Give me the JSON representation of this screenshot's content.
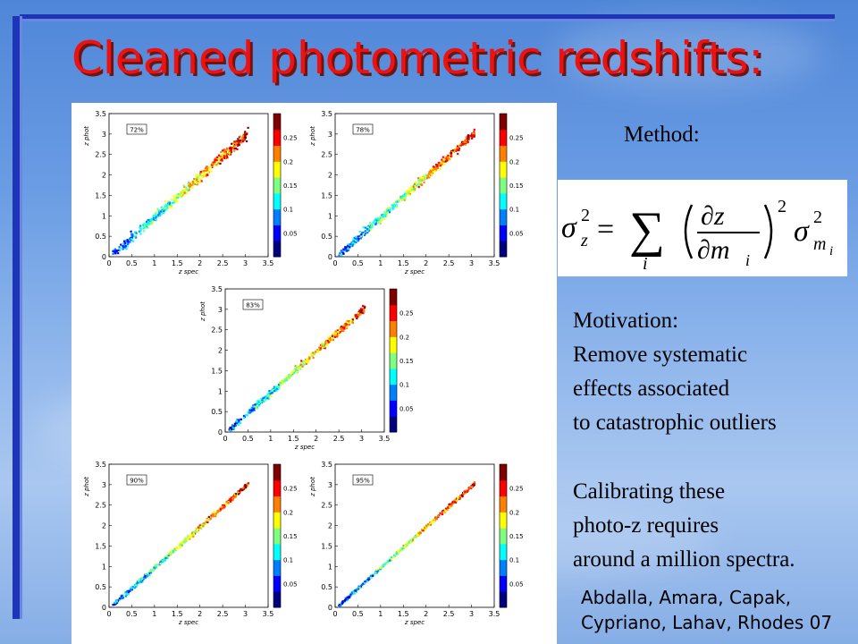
{
  "slide": {
    "title": "Cleaned photometric redshifts:",
    "method_label": "Method:",
    "equation": {
      "lhs": "σ",
      "lhs_sub": "z",
      "sum_sub": "i",
      "numerator": "∂z",
      "denominator": "∂m",
      "den_sub": "i",
      "rhs": "σ",
      "rhs_sub": "m",
      "rhs_subsub": "i",
      "power": "2"
    },
    "motivation": [
      "Motivation:",
      "Remove systematic",
      "effects associated",
      "to catastrophic outliers"
    ],
    "calibrating": [
      "Calibrating these",
      "photo-z requires",
      "around a million spectra."
    ],
    "credit": [
      "Abdalla, Amara, Capak,",
      "Cypriano, Lahav, Rhodes 07"
    ],
    "colors": {
      "title": "#ee1111",
      "accent_bar": "#1f35b8"
    }
  },
  "chart_data": [
    {
      "type": "scatter",
      "label": "72%",
      "xlabel": "z spec",
      "ylabel": "z phot",
      "xlim": [
        0,
        3.5
      ],
      "ylim": [
        0,
        3.5
      ],
      "colorbar_ticks": [
        "0.25",
        "0.2",
        "0.15",
        "0.1",
        "0.05"
      ],
      "x_ticks": [
        "0",
        "0.5",
        "1",
        "1.5",
        "2",
        "2.5",
        "3",
        "3.5"
      ],
      "y_ticks": [
        "0",
        "0.5",
        "1",
        "1.5",
        "2",
        "2.5",
        "3",
        "3.5"
      ],
      "spread": 0.22
    },
    {
      "type": "scatter",
      "label": "78%",
      "xlabel": "z spec",
      "ylabel": "z phot",
      "xlim": [
        0,
        3.5
      ],
      "ylim": [
        0,
        3.5
      ],
      "colorbar_ticks": [
        "0.25",
        "0.2",
        "0.15",
        "0.1",
        "0.05"
      ],
      "x_ticks": [
        "0",
        "0.5",
        "1",
        "1.5",
        "2",
        "2.5",
        "3",
        "3.5"
      ],
      "y_ticks": [
        "0",
        "0.5",
        "1",
        "1.5",
        "2",
        "2.5",
        "3",
        "3.5"
      ],
      "spread": 0.18
    },
    {
      "type": "scatter",
      "label": "83%",
      "xlabel": "z spec",
      "ylabel": "z phot",
      "xlim": [
        0,
        3.5
      ],
      "ylim": [
        0,
        3.5
      ],
      "colorbar_ticks": [
        "0.25",
        "0.2",
        "0.15",
        "0.1",
        "0.05"
      ],
      "x_ticks": [
        "0",
        "0.5",
        "1",
        "1.5",
        "2",
        "2.5",
        "3",
        "3.5"
      ],
      "y_ticks": [
        "0",
        "0.5",
        "1",
        "1.5",
        "2",
        "2.5",
        "3",
        "3.5"
      ],
      "spread": 0.14
    },
    {
      "type": "scatter",
      "label": "90%",
      "xlabel": "z spec",
      "ylabel": "z phot",
      "xlim": [
        0,
        3.5
      ],
      "ylim": [
        0,
        3.5
      ],
      "colorbar_ticks": [
        "0.25",
        "0.2",
        "0.15",
        "0.1",
        "0.05"
      ],
      "x_ticks": [
        "0",
        "0.5",
        "1",
        "1.5",
        "2",
        "2.5",
        "3",
        "3.5"
      ],
      "y_ticks": [
        "0",
        "0.5",
        "1",
        "1.5",
        "2",
        "2.5",
        "3",
        "3.5"
      ],
      "spread": 0.1
    },
    {
      "type": "scatter",
      "label": "95%",
      "xlabel": "z spec",
      "ylabel": "z phot",
      "xlim": [
        0,
        3.5
      ],
      "ylim": [
        0,
        3.5
      ],
      "colorbar_ticks": [
        "0.25",
        "0.2",
        "0.15",
        "0.1",
        "0.05"
      ],
      "x_ticks": [
        "0",
        "0.5",
        "1",
        "1.5",
        "2",
        "2.5",
        "3",
        "3.5"
      ],
      "y_ticks": [
        "0",
        "0.5",
        "1",
        "1.5",
        "2",
        "2.5",
        "3",
        "3.5"
      ],
      "spread": 0.07
    }
  ]
}
